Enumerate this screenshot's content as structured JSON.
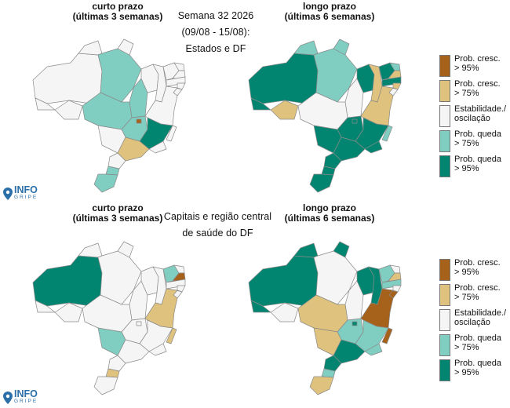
{
  "top": {
    "left_title": [
      "curto prazo",
      "(últimas 3 semanas)"
    ],
    "right_title": [
      "longo prazo",
      "(últimas 6 semanas)"
    ],
    "center_lines": [
      "Semana 32 2026",
      "(09/08 - 15/08):",
      "Estados e DF"
    ]
  },
  "bottom": {
    "left_title": [
      "curto prazo",
      "(últimas 3 semanas)"
    ],
    "right_title": [
      "longo prazo",
      "(últimas 6 semanas)"
    ],
    "center_lines": [
      "Capitais e região central",
      "de saúde do DF"
    ]
  },
  "legend": [
    {
      "label": "Prob. cresc.\n> 95%",
      "color": "#a6611a"
    },
    {
      "label": "Prob. cresc.\n> 75%",
      "color": "#dfc27d"
    },
    {
      "label": "Estabilidade./\noscilação",
      "color": "#f5f5f5"
    },
    {
      "label": "Prob. queda\n> 75%",
      "color": "#80cdc1"
    },
    {
      "label": "Prob. queda\n> 95%",
      "color": "#018571"
    }
  ],
  "logo": {
    "main": "INFO",
    "sub": "GRIPE"
  }
}
